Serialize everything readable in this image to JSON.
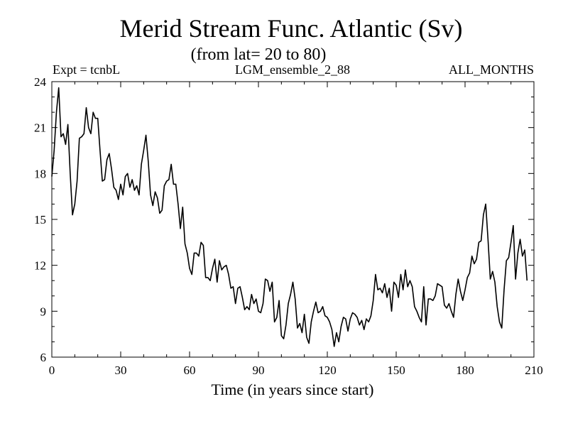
{
  "chart_data": {
    "type": "line",
    "title": "Merid Stream Func. Atlantic (Sv)",
    "subtitle": "(from lat= 20 to 80)",
    "annotations": {
      "left": "Expt = tcnbL",
      "center": "LGM_ensemble_2_88",
      "right": "ALL_MONTHS"
    },
    "xlabel": "Time (in years since start)",
    "ylabel": "",
    "xlim": [
      0,
      210
    ],
    "ylim": [
      6,
      24
    ],
    "xticks": [
      0,
      30,
      60,
      90,
      120,
      150,
      180,
      210
    ],
    "yticks": [
      6,
      9,
      12,
      15,
      18,
      21,
      24
    ],
    "x_minor_step": 10,
    "y_minor_step": 1,
    "grid": false,
    "series": [
      {
        "name": "Merid Stream Func. Atlantic",
        "x_start": 0,
        "x_step": 1,
        "values": [
          17.8,
          19.5,
          22.0,
          23.6,
          20.4,
          20.6,
          19.9,
          21.2,
          18.0,
          15.3,
          16.0,
          17.5,
          20.3,
          20.4,
          20.6,
          22.3,
          21.0,
          20.6,
          22.0,
          21.6,
          21.6,
          19.5,
          17.5,
          17.6,
          18.9,
          19.3,
          18.3,
          17.1,
          16.9,
          16.3,
          17.3,
          16.6,
          17.8,
          18.0,
          17.1,
          17.6,
          16.9,
          17.2,
          16.6,
          18.6,
          19.5,
          20.5,
          18.8,
          16.6,
          15.9,
          16.8,
          16.4,
          15.4,
          15.6,
          17.2,
          17.5,
          17.6,
          18.6,
          17.3,
          17.3,
          16.0,
          14.4,
          15.8,
          13.4,
          12.8,
          11.8,
          11.4,
          12.8,
          12.8,
          12.6,
          13.5,
          13.3,
          11.2,
          11.2,
          11.0,
          11.8,
          12.4,
          10.9,
          12.3,
          11.7,
          11.9,
          12.0,
          11.4,
          10.5,
          10.6,
          9.5,
          10.5,
          10.6,
          9.9,
          9.1,
          9.3,
          9.1,
          10.1,
          9.5,
          9.8,
          9.0,
          8.9,
          9.5,
          11.1,
          11.0,
          10.3,
          10.9,
          8.3,
          8.6,
          9.7,
          7.4,
          7.2,
          8.1,
          9.5,
          10.1,
          10.9,
          9.8,
          7.9,
          8.2,
          7.6,
          8.8,
          7.3,
          6.9,
          8.3,
          9.0,
          9.6,
          8.9,
          9.0,
          9.3,
          8.7,
          8.6,
          8.3,
          7.8,
          6.7,
          7.6,
          7.0,
          8.0,
          8.6,
          8.5,
          7.7,
          8.5,
          8.9,
          8.8,
          8.6,
          8.1,
          8.4,
          7.8,
          8.5,
          8.3,
          8.7,
          9.7,
          11.4,
          10.4,
          10.5,
          10.2,
          10.8,
          9.9,
          10.5,
          9.0,
          10.9,
          10.7,
          9.9,
          11.4,
          10.4,
          11.7,
          10.6,
          11.0,
          10.6,
          9.3,
          9.0,
          8.6,
          8.3,
          10.6,
          8.1,
          9.8,
          9.8,
          9.7,
          10.0,
          10.8,
          10.7,
          10.6,
          9.4,
          9.2,
          9.5,
          9.0,
          8.6,
          10.1,
          11.1,
          10.3,
          9.7,
          10.4,
          11.2,
          11.5,
          12.6,
          12.1,
          12.4,
          13.5,
          13.6,
          15.3,
          16.0,
          13.7,
          11.1,
          11.6,
          10.9,
          9.3,
          8.3,
          7.9,
          10.4,
          12.3,
          12.5,
          13.5,
          14.6,
          11.1,
          12.8,
          13.7,
          12.6,
          13.0,
          11.0
        ]
      }
    ]
  }
}
